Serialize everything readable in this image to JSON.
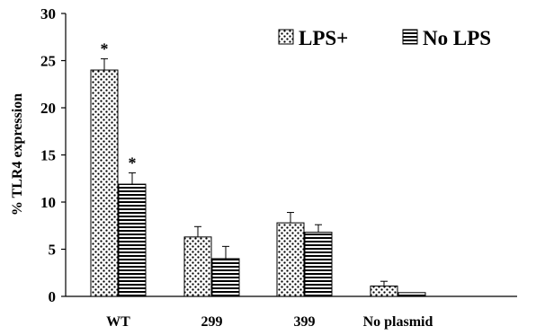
{
  "chart_data": {
    "type": "bar",
    "title": "",
    "xlabel": "",
    "ylabel": "% TLR4 expression",
    "ylim": [
      0,
      30
    ],
    "yticks": [
      0,
      5,
      10,
      15,
      20,
      25,
      30
    ],
    "categories": [
      "WT",
      "299",
      "399",
      "No plasmid"
    ],
    "series": [
      {
        "name": "LPS+",
        "pattern": "dots",
        "values": [
          24.0,
          6.3,
          7.8,
          1.1
        ],
        "errors": [
          1.2,
          1.1,
          1.1,
          0.5
        ],
        "annotations": [
          "*",
          "",
          "",
          ""
        ]
      },
      {
        "name": "No LPS",
        "pattern": "horizontal-stripes",
        "values": [
          11.9,
          4.0,
          6.8,
          0.4
        ],
        "errors": [
          1.2,
          1.3,
          0.8,
          0.0
        ],
        "annotations": [
          "*",
          "",
          "",
          ""
        ]
      }
    ],
    "legend": "top-right",
    "grid": false,
    "colors": {
      "ink": "#000000",
      "background": "#ffffff"
    }
  }
}
